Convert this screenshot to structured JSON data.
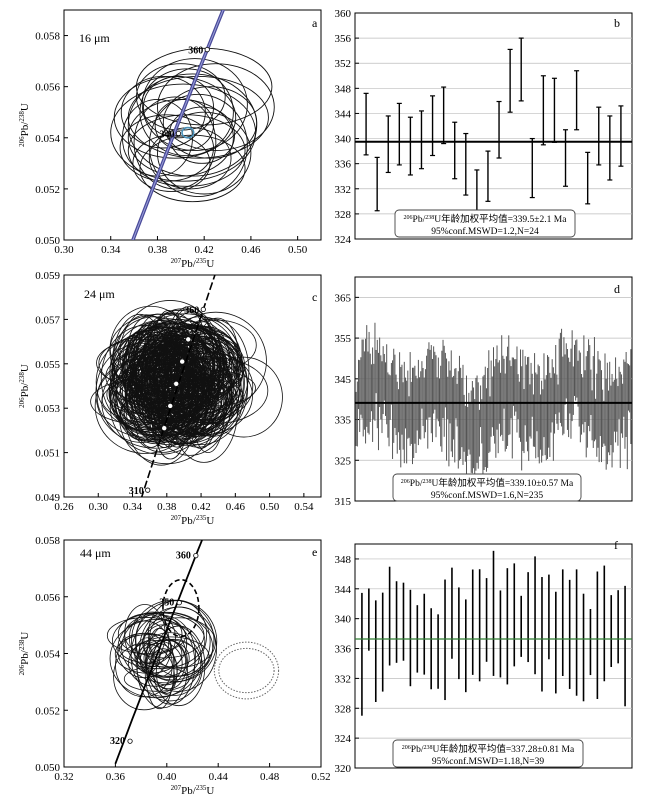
{
  "chart_data": [
    {
      "panel": "a",
      "type": "concordia",
      "annotation": "16 μm",
      "xlabel": "207Pb/235U",
      "ylabel": "206Pb/238U",
      "xlim": [
        0.3,
        0.52
      ],
      "ylim": [
        0.05,
        0.059
      ],
      "xticks": [
        "0.30",
        "0.34",
        "0.38",
        "0.42",
        "0.46",
        "0.50"
      ],
      "yticks": [
        "0.050",
        "0.052",
        "0.054",
        "0.056",
        "0.058"
      ],
      "concordia_labels": [
        {
          "age": "360",
          "x": 0.4226,
          "y": 0.05745
        },
        {
          "age": "340",
          "x": 0.398,
          "y": 0.05417
        }
      ],
      "concordia_x": [
        0.355,
        0.455
      ],
      "ellipses": [
        {
          "x": 0.405,
          "y": 0.055,
          "rx": 0.04,
          "ry": 0.0017
        },
        {
          "x": 0.41,
          "y": 0.0545,
          "rx": 0.055,
          "ry": 0.002
        },
        {
          "x": 0.4,
          "y": 0.054,
          "rx": 0.045,
          "ry": 0.0015
        },
        {
          "x": 0.395,
          "y": 0.0538,
          "rx": 0.035,
          "ry": 0.0018
        },
        {
          "x": 0.415,
          "y": 0.0548,
          "rx": 0.06,
          "ry": 0.0016
        },
        {
          "x": 0.405,
          "y": 0.0535,
          "rx": 0.05,
          "ry": 0.0014
        },
        {
          "x": 0.42,
          "y": 0.056,
          "rx": 0.058,
          "ry": 0.0015
        },
        {
          "x": 0.398,
          "y": 0.0552,
          "rx": 0.03,
          "ry": 0.0012
        },
        {
          "x": 0.412,
          "y": 0.0553,
          "rx": 0.045,
          "ry": 0.0018
        },
        {
          "x": 0.402,
          "y": 0.0542,
          "rx": 0.062,
          "ry": 0.0019
        },
        {
          "x": 0.388,
          "y": 0.0536,
          "rx": 0.04,
          "ry": 0.0013
        },
        {
          "x": 0.408,
          "y": 0.0532,
          "rx": 0.035,
          "ry": 0.0012
        },
        {
          "x": 0.418,
          "y": 0.0541,
          "rx": 0.028,
          "ry": 0.0011
        },
        {
          "x": 0.395,
          "y": 0.0548,
          "rx": 0.052,
          "ry": 0.0016
        },
        {
          "x": 0.425,
          "y": 0.0546,
          "rx": 0.04,
          "ry": 0.0014
        },
        {
          "x": 0.38,
          "y": 0.054,
          "rx": 0.03,
          "ry": 0.0015
        },
        {
          "x": 0.41,
          "y": 0.0528,
          "rx": 0.045,
          "ry": 0.0013
        },
        {
          "x": 0.4,
          "y": 0.0556,
          "rx": 0.038,
          "ry": 0.0013
        },
        {
          "x": 0.43,
          "y": 0.0552,
          "rx": 0.05,
          "ry": 0.0017
        },
        {
          "x": 0.392,
          "y": 0.053,
          "rx": 0.033,
          "ry": 0.0011
        },
        {
          "x": 0.415,
          "y": 0.0537,
          "rx": 0.042,
          "ry": 0.002
        },
        {
          "x": 0.403,
          "y": 0.0545,
          "rx": 0.025,
          "ry": 0.001
        },
        {
          "x": 0.385,
          "y": 0.055,
          "rx": 0.036,
          "ry": 0.0014
        },
        {
          "x": 0.42,
          "y": 0.0534,
          "rx": 0.04,
          "ry": 0.0016
        }
      ],
      "mean_ellipse": {
        "x": 0.406,
        "y": 0.0542,
        "rx": 0.005,
        "ry": 0.0002
      }
    },
    {
      "panel": "b",
      "type": "error-bar",
      "ylim": [
        324,
        360
      ],
      "yticks": [
        "324",
        "328",
        "332",
        "336",
        "340",
        "344",
        "348",
        "352",
        "356",
        "360"
      ],
      "mean": 339.5,
      "values": [
        [
          337.4,
          347.2
        ],
        [
          328.5,
          337.0
        ],
        [
          334.6,
          343.6
        ],
        [
          335.8,
          345.6
        ],
        [
          334.2,
          343.4
        ],
        [
          335.2,
          344.4
        ],
        [
          337.3,
          346.8
        ],
        [
          339.2,
          348.2
        ],
        [
          333.6,
          342.6
        ],
        [
          331.0,
          340.8
        ],
        [
          328.6,
          335.0
        ],
        [
          330.0,
          338.0
        ],
        [
          336.9,
          345.9
        ],
        [
          344.2,
          354.2
        ],
        [
          346.0,
          356.0
        ],
        [
          330.6,
          340.0
        ],
        [
          339.0,
          350.0
        ],
        [
          339.4,
          349.6
        ],
        [
          332.4,
          341.4
        ],
        [
          341.4,
          350.8
        ],
        [
          329.6,
          337.8
        ],
        [
          335.8,
          345.0
        ],
        [
          333.4,
          343.6
        ],
        [
          335.6,
          345.2
        ]
      ],
      "result_line1": "206Pb/238U年龄加权平均值=339.5±2.1 Ma",
      "result_line2": "95%conf.MSWD=1.2,N=24"
    },
    {
      "panel": "c",
      "type": "concordia",
      "annotation": "24 μm",
      "xlabel": "207Pb/235U",
      "ylabel": "206Pb/238U",
      "xlim": [
        0.26,
        0.56
      ],
      "ylim": [
        0.049,
        0.059
      ],
      "xticks": [
        "0.26",
        "0.30",
        "0.34",
        "0.38",
        "0.42",
        "0.46",
        "0.50",
        "0.54"
      ],
      "yticks": [
        "0.049",
        "0.051",
        "0.053",
        "0.055",
        "0.057",
        "0.059"
      ],
      "concordia_labels": [
        {
          "age": "360",
          "x": 0.4226,
          "y": 0.05745
        },
        {
          "age": "310",
          "x": 0.3577,
          "y": 0.04931
        }
      ],
      "concordia_x": [
        0.35,
        0.445
      ],
      "ellipse_center": {
        "x": 0.39,
        "y": 0.0542
      },
      "ellipse_count": 235,
      "concordia_points": [
        {
          "x": 0.405,
          "y": 0.0561
        },
        {
          "x": 0.398,
          "y": 0.0551
        },
        {
          "x": 0.391,
          "y": 0.0541
        },
        {
          "x": 0.384,
          "y": 0.0531
        },
        {
          "x": 0.377,
          "y": 0.0521
        }
      ]
    },
    {
      "panel": "d",
      "type": "error-bar",
      "ylim": [
        315,
        370
      ],
      "yticks": [
        "315",
        "325",
        "335",
        "345",
        "355",
        "365"
      ],
      "mean": 339.1,
      "n_bars": 235,
      "result_line1": "206Pb/238U年龄加权平均值=339.10±0.57 Ma",
      "result_line2": "95%conf.MSWD=1.6,N=235"
    },
    {
      "panel": "e",
      "type": "concordia",
      "annotation": "44 μm",
      "xlabel": "207Pb/235U",
      "ylabel": "206Pb/238U",
      "xlim": [
        0.32,
        0.52
      ],
      "ylim": [
        0.05,
        0.058
      ],
      "xticks": [
        "0.32",
        "0.36",
        "0.40",
        "0.44",
        "0.48",
        "0.52"
      ],
      "yticks": [
        "0.050",
        "0.052",
        "0.054",
        "0.056",
        "0.058"
      ],
      "concordia_labels": [
        {
          "age": "360",
          "x": 0.4226,
          "y": 0.05745
        },
        {
          "age": "350",
          "x": 0.4097,
          "y": 0.05579
        },
        {
          "age": "320",
          "x": 0.3714,
          "y": 0.05091
        }
      ],
      "concordia_x": [
        0.36,
        0.44
      ],
      "ellipse_center": {
        "x": 0.396,
        "y": 0.0539
      },
      "ellipse_count": 39,
      "outlier_ellipses": [
        {
          "x": 0.411,
          "y": 0.0556,
          "rx": 0.014,
          "ry": 0.001,
          "style": "dashed"
        },
        {
          "x": 0.462,
          "y": 0.0534,
          "rx": 0.025,
          "ry": 0.001,
          "style": "dotted"
        }
      ]
    },
    {
      "panel": "f",
      "type": "error-bar",
      "ylim": [
        320,
        350
      ],
      "yticks": [
        "320",
        "324",
        "328",
        "332",
        "336",
        "340",
        "344",
        "348"
      ],
      "mean": 337.28,
      "n_bars": 39,
      "result_line1": "206Pb/238U年龄加权平均值=337.28±0.81 Ma",
      "result_line2": "95%conf.MSWD=1.18,N=39"
    }
  ]
}
